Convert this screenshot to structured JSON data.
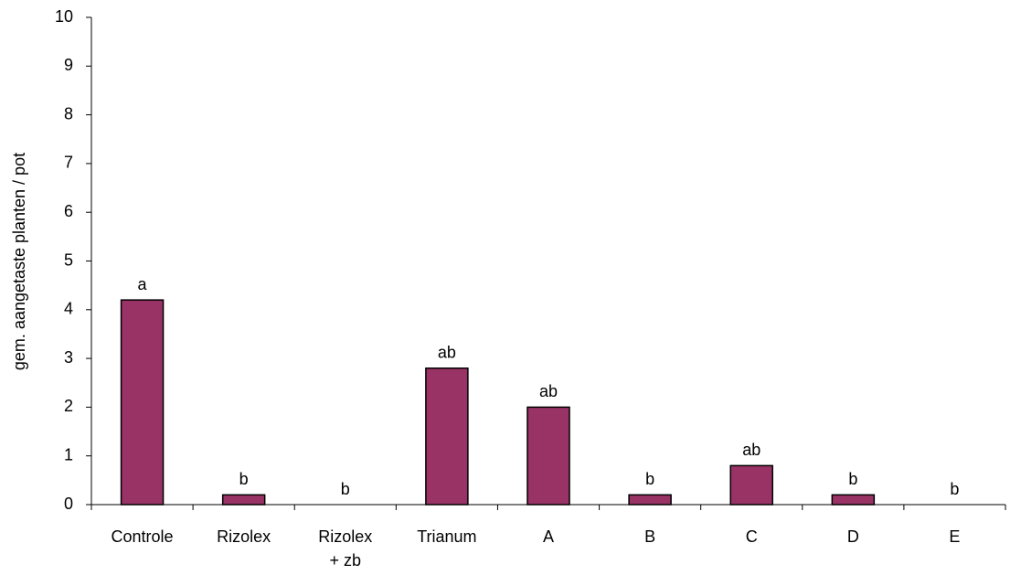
{
  "chart_data": {
    "type": "bar",
    "ylabel": "gem. aangetaste planten / pot",
    "categories": [
      "Controle",
      "Rizolex",
      "Rizolex\n+ zb",
      "Trianum",
      "A",
      "B",
      "C",
      "D",
      "E"
    ],
    "values": [
      4.2,
      0.2,
      0,
      2.8,
      2.0,
      0.2,
      0.8,
      0.2,
      0
    ],
    "annotations": [
      "a",
      "b",
      "b",
      "ab",
      "ab",
      "b",
      "ab",
      "b",
      "b"
    ],
    "color": "#993366",
    "ylim": [
      0,
      10
    ],
    "yticks": [
      0,
      1,
      2,
      3,
      4,
      5,
      6,
      7,
      8,
      9,
      10
    ],
    "grid": false
  }
}
